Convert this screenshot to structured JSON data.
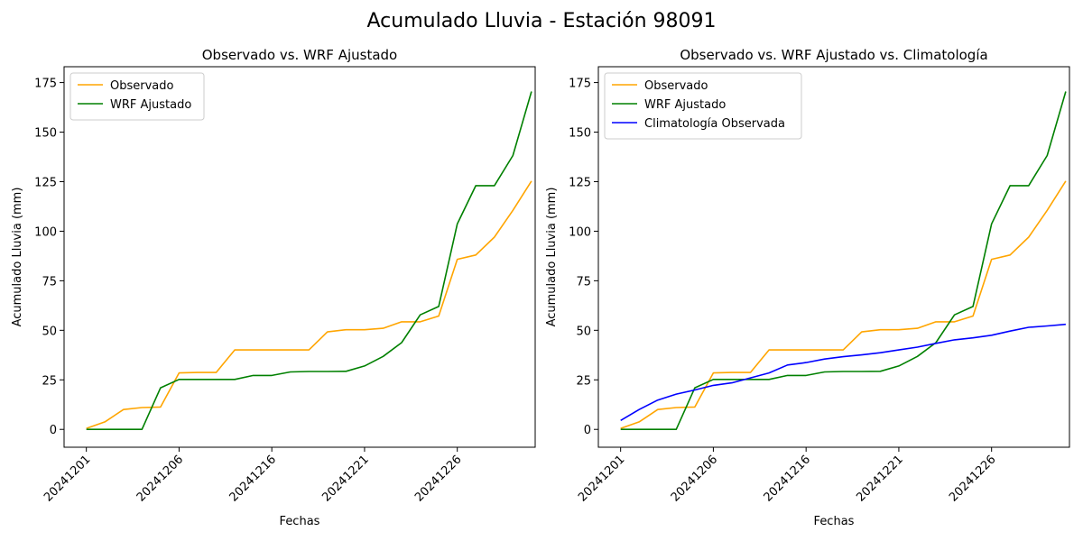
{
  "figure": {
    "suptitle": "Acumulado Lluvia - Estación 98091"
  },
  "chart_data": [
    {
      "type": "line",
      "title": "Observado vs. WRF Ajustado",
      "xlabel": "Fechas",
      "ylabel": "Acumulado Lluvia (mm)",
      "x_tick_labels": [
        "20241201",
        "20241206",
        "20241216",
        "20241221",
        "20241226"
      ],
      "x_tick_positions": [
        0,
        5,
        10,
        15,
        20
      ],
      "y_ticks": [
        0,
        25,
        50,
        75,
        100,
        125,
        150,
        175
      ],
      "xlim": [
        -1.2,
        24.2
      ],
      "ylim": [
        -9,
        183
      ],
      "legend_position": "top-left",
      "grid": false,
      "series": [
        {
          "name": "Observado",
          "color": "#ffa500",
          "values": [
            0.5,
            3.8,
            10.0,
            11.0,
            11.3,
            28.5,
            28.7,
            28.7,
            40.1,
            40.1,
            40.1,
            40.1,
            40.1,
            49.2,
            50.3,
            50.3,
            51.0,
            54.3,
            54.3,
            57.2,
            85.8,
            88.0,
            97.0,
            110.5,
            125.3
          ]
        },
        {
          "name": "WRF Ajustado",
          "color": "#008000",
          "values": [
            0.0,
            0.0,
            0.0,
            0.0,
            21.0,
            25.2,
            25.2,
            25.2,
            25.2,
            27.2,
            27.2,
            29.0,
            29.2,
            29.2,
            29.3,
            32.0,
            36.8,
            43.8,
            57.8,
            62.0,
            103.7,
            123.0,
            123.0,
            138.2,
            170.5
          ]
        }
      ]
    },
    {
      "type": "line",
      "title": "Observado vs. WRF Ajustado vs. Climatología",
      "xlabel": "Fechas",
      "ylabel": "Acumulado Lluvia (mm)",
      "x_tick_labels": [
        "20241201",
        "20241206",
        "20241216",
        "20241221",
        "20241226"
      ],
      "x_tick_positions": [
        0,
        5,
        10,
        15,
        20
      ],
      "y_ticks": [
        0,
        25,
        50,
        75,
        100,
        125,
        150,
        175
      ],
      "xlim": [
        -1.2,
        24.2
      ],
      "ylim": [
        -9,
        183
      ],
      "legend_position": "top-left",
      "grid": false,
      "series": [
        {
          "name": "Observado",
          "color": "#ffa500",
          "values": [
            0.5,
            3.8,
            10.0,
            11.0,
            11.3,
            28.5,
            28.7,
            28.7,
            40.1,
            40.1,
            40.1,
            40.1,
            40.1,
            49.2,
            50.3,
            50.3,
            51.0,
            54.3,
            54.3,
            57.2,
            85.8,
            88.0,
            97.0,
            110.5,
            125.3
          ]
        },
        {
          "name": "WRF Ajustado",
          "color": "#008000",
          "values": [
            0.0,
            0.0,
            0.0,
            0.0,
            21.0,
            25.2,
            25.2,
            25.2,
            25.2,
            27.2,
            27.2,
            29.0,
            29.2,
            29.2,
            29.3,
            32.0,
            36.8,
            43.8,
            57.8,
            62.0,
            103.7,
            123.0,
            123.0,
            138.2,
            170.5
          ]
        },
        {
          "name": "Climatología Observada",
          "color": "#0000ff",
          "values": [
            4.5,
            10.0,
            14.8,
            17.8,
            19.9,
            22.2,
            23.5,
            26.0,
            28.5,
            32.5,
            33.7,
            35.5,
            36.7,
            37.6,
            38.7,
            40.1,
            41.5,
            43.4,
            45.2,
            46.2,
            47.5,
            49.6,
            51.5,
            52.2,
            53.0
          ]
        }
      ]
    }
  ]
}
